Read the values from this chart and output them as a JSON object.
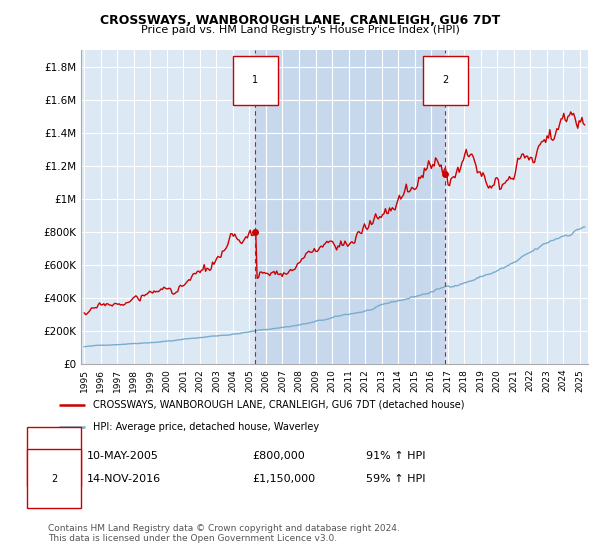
{
  "title": "CROSSWAYS, WANBOROUGH LANE, CRANLEIGH, GU6 7DT",
  "subtitle": "Price paid vs. HM Land Registry's House Price Index (HPI)",
  "ylabel_ticks": [
    "£0",
    "£200K",
    "£400K",
    "£600K",
    "£800K",
    "£1M",
    "£1.2M",
    "£1.4M",
    "£1.6M",
    "£1.8M"
  ],
  "ytick_values": [
    0,
    200000,
    400000,
    600000,
    800000,
    1000000,
    1200000,
    1400000,
    1600000,
    1800000
  ],
  "ylim": [
    0,
    1900000
  ],
  "xlim_start": 1994.8,
  "xlim_end": 2025.5,
  "background_color": "#dce9f5",
  "plot_bg": "#dce9f5",
  "highlight_bg": "#c8d8ec",
  "grid_color": "#ffffff",
  "marker1_date": 2005.36,
  "marker1_price": 800000,
  "marker1_label": "1",
  "marker2_date": 2016.87,
  "marker2_price": 1150000,
  "marker2_label": "2",
  "legend_red_label": "CROSSWAYS, WANBOROUGH LANE, CRANLEIGH, GU6 7DT (detached house)",
  "legend_blue_label": "HPI: Average price, detached house, Waverley",
  "footer": "Contains HM Land Registry data © Crown copyright and database right 2024.\nThis data is licensed under the Open Government Licence v3.0.",
  "red_color": "#cc0000",
  "blue_color": "#7aaccc",
  "xticks": [
    1995,
    1996,
    1997,
    1998,
    1999,
    2000,
    2001,
    2002,
    2003,
    2004,
    2005,
    2006,
    2007,
    2008,
    2009,
    2010,
    2011,
    2012,
    2013,
    2014,
    2015,
    2016,
    2017,
    2018,
    2019,
    2020,
    2021,
    2022,
    2023,
    2024,
    2025
  ],
  "row1_date": "10-MAY-2005",
  "row1_price": "£800,000",
  "row1_hpi": "91% ↑ HPI",
  "row2_date": "14-NOV-2016",
  "row2_price": "£1,150,000",
  "row2_hpi": "59% ↑ HPI"
}
